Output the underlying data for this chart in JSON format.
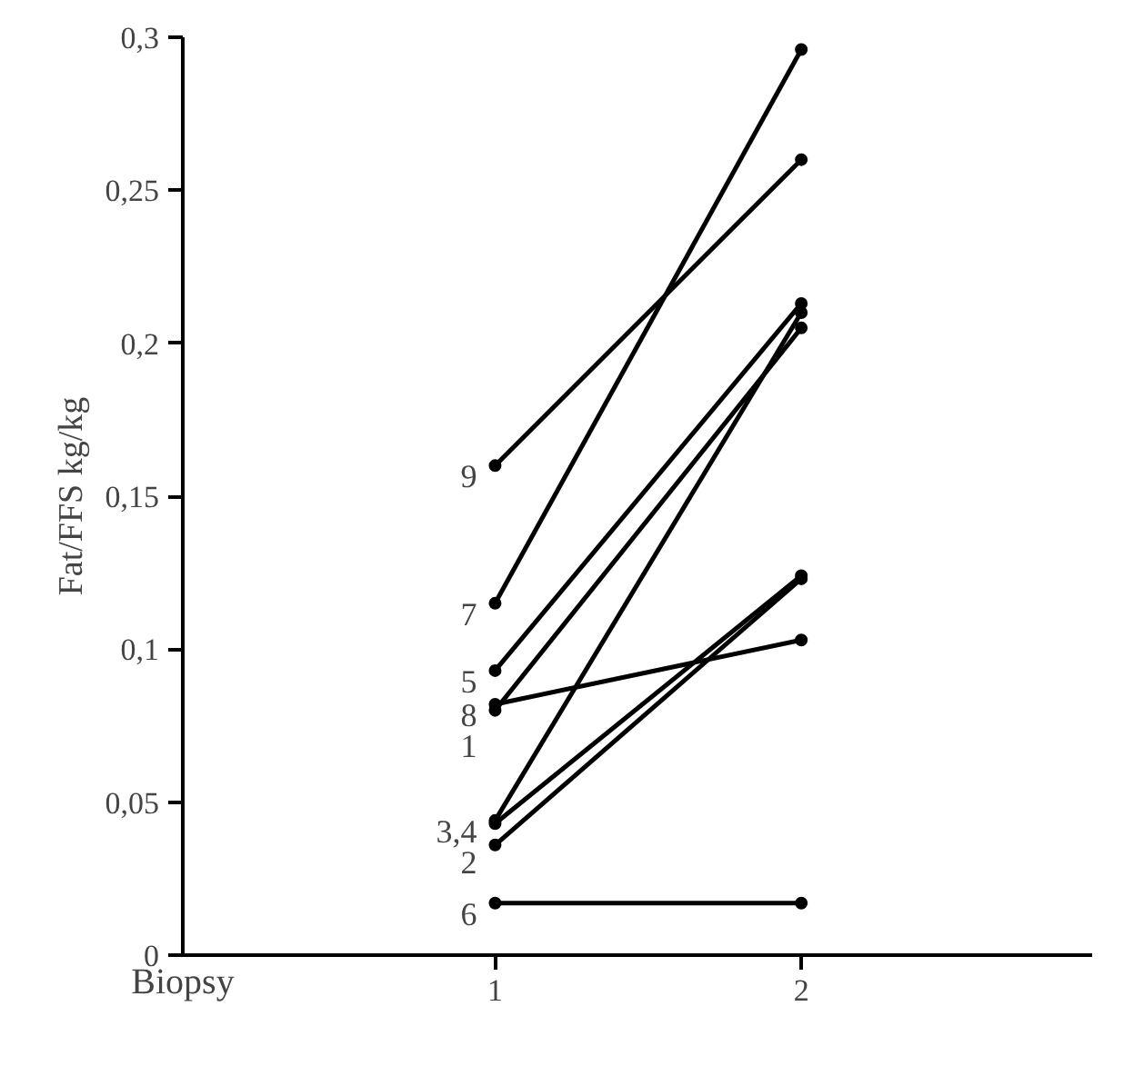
{
  "chart_data": {
    "type": "line",
    "xlabel": "Biopsy",
    "ylabel": "Fat/FFS kg/kg",
    "categories": [
      "1",
      "2"
    ],
    "ylim": [
      0,
      0.3
    ],
    "yticks": [
      {
        "value": 0,
        "label": "0"
      },
      {
        "value": 0.05,
        "label": "0,05"
      },
      {
        "value": 0.1,
        "label": "0,1"
      },
      {
        "value": 0.15,
        "label": "0,15"
      },
      {
        "value": 0.2,
        "label": "0,2"
      },
      {
        "value": 0.25,
        "label": "0,25"
      },
      {
        "value": 0.3,
        "label": "0,3"
      }
    ],
    "grid": false,
    "legend": false,
    "marker": "circle",
    "line_style": "solid",
    "series": [
      {
        "name": "1",
        "color": "#000000",
        "values": [
          0.08,
          0.205
        ]
      },
      {
        "name": "2",
        "color": "#000000",
        "values": [
          0.036,
          0.123
        ]
      },
      {
        "name": "3,4",
        "color": "#000000",
        "values": [
          0.044,
          0.21
        ]
      },
      {
        "color": "#000000",
        "values": [
          0.043,
          0.124
        ]
      },
      {
        "name": "5",
        "color": "#000000",
        "values": [
          0.093,
          0.213
        ]
      },
      {
        "name": "6",
        "color": "#000000",
        "values": [
          0.017,
          0.017
        ]
      },
      {
        "name": "7",
        "color": "#000000",
        "values": [
          0.115,
          0.296
        ]
      },
      {
        "name": "8",
        "color": "#000000",
        "values": [
          0.082,
          0.103
        ]
      },
      {
        "name": "9",
        "color": "#000000",
        "values": [
          0.16,
          0.26
        ]
      }
    ]
  }
}
